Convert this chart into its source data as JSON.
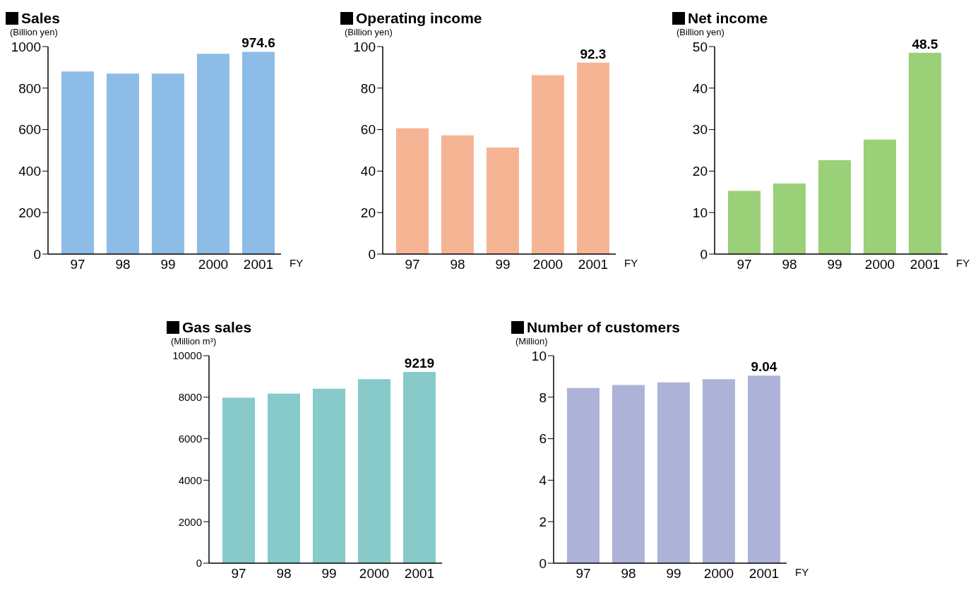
{
  "chart_data": [
    {
      "type": "bar",
      "title": "Sales",
      "ylabel": "(Billion yen)",
      "xlabel": "FY",
      "categories": [
        "97",
        "98",
        "99",
        "2000",
        "2001"
      ],
      "values": [
        880,
        870,
        870,
        965,
        974.6
      ],
      "value_labels": [
        null,
        null,
        null,
        null,
        "974.6"
      ],
      "color": "#8dbce6",
      "ylim": [
        0,
        1000
      ],
      "yticks": [
        0,
        200,
        400,
        600,
        800,
        1000
      ],
      "grid": false,
      "legend": false
    },
    {
      "type": "bar",
      "title": "Operating income",
      "ylabel": "(Billion yen)",
      "xlabel": "FY",
      "categories": [
        "97",
        "98",
        "99",
        "2000",
        "2001"
      ],
      "values": [
        60.6,
        57.2,
        51.4,
        86.2,
        92.3
      ],
      "value_labels": [
        null,
        null,
        null,
        null,
        "92.3"
      ],
      "color": "#f5b595",
      "ylim": [
        0,
        100
      ],
      "yticks": [
        0,
        20,
        40,
        60,
        80,
        100
      ],
      "grid": false,
      "legend": false
    },
    {
      "type": "bar",
      "title": "Net income",
      "ylabel": "(Billion yen)",
      "xlabel": "FY",
      "categories": [
        "97",
        "98",
        "99",
        "2000",
        "2001"
      ],
      "values": [
        15.2,
        17.0,
        22.6,
        27.6,
        48.5
      ],
      "value_labels": [
        null,
        null,
        null,
        null,
        "48.5"
      ],
      "color": "#9ad077",
      "ylim": [
        0,
        50
      ],
      "yticks": [
        0,
        10,
        20,
        30,
        40,
        50
      ],
      "grid": false,
      "legend": false
    },
    {
      "type": "bar",
      "title": "Gas sales",
      "ylabel": "(Million m³)",
      "categories": [
        "97",
        "98",
        "99",
        "2000",
        "2001"
      ],
      "values": [
        7980,
        8170,
        8410,
        8870,
        9219
      ],
      "value_labels": [
        null,
        null,
        null,
        null,
        "9219"
      ],
      "color": "#87cac9",
      "ylim": [
        0,
        10000
      ],
      "yticks": [
        0,
        2000,
        4000,
        6000,
        8000,
        10000
      ],
      "grid": false,
      "legend": false
    },
    {
      "type": "bar",
      "title": "Number of customers",
      "ylabel": "(Million)",
      "xlabel": "FY",
      "categories": [
        "97",
        "98",
        "99",
        "2000",
        "2001"
      ],
      "values": [
        8.44,
        8.59,
        8.72,
        8.87,
        9.04
      ],
      "value_labels": [
        null,
        null,
        null,
        null,
        "9.04"
      ],
      "color": "#adb3d8",
      "ylim": [
        0,
        10
      ],
      "yticks": [
        0,
        2,
        4,
        6,
        8,
        10
      ],
      "grid": false,
      "legend": false
    }
  ]
}
